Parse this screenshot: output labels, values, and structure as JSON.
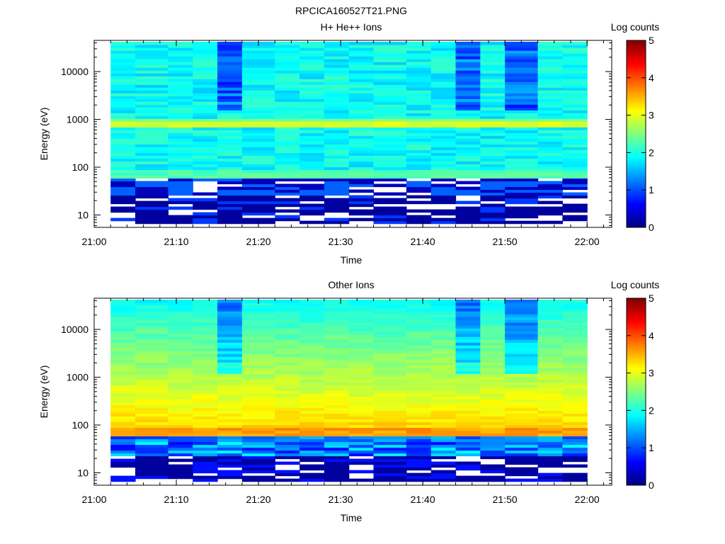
{
  "figure_title": "RPCICA160527T21.PNG",
  "chart_data": [
    {
      "type": "heatmap",
      "title": "H+ He++ Ions",
      "xlabel": "Time",
      "ylabel": "Energy (eV)",
      "y_scale": "log",
      "ylim": [
        5.5,
        45000
      ],
      "xlim": [
        "21:00",
        "22:03"
      ],
      "x_ticks": [
        "21:00",
        "21:10",
        "21:20",
        "21:30",
        "21:40",
        "21:50",
        "22:00"
      ],
      "y_ticks": [
        "10",
        "100",
        "1000",
        "10000"
      ],
      "colorbar": {
        "label": "Log counts",
        "range": [
          0,
          5
        ],
        "ticks": [
          "0",
          "1",
          "2",
          "3",
          "4",
          "5"
        ],
        "colormap": "jet"
      },
      "time_bins_start": [
        "21:02",
        "21:05",
        "21:09",
        "21:12",
        "21:15",
        "21:18",
        "21:22",
        "21:25",
        "21:28",
        "21:31",
        "21:34",
        "21:38",
        "21:41",
        "21:44",
        "21:47",
        "21:50",
        "21:54",
        "21:57"
      ],
      "time_bins_end": "22:00",
      "profile_note_values": {
        "band_energy_eV": 800,
        "band_log_counts": 2.85,
        "background_log_counts": 1.9
      }
    },
    {
      "type": "heatmap",
      "title": "Other Ions",
      "xlabel": "Time",
      "ylabel": "Energy (eV)",
      "y_scale": "log",
      "ylim": [
        5.5,
        45000
      ],
      "xlim": [
        "21:00",
        "22:03"
      ],
      "x_ticks": [
        "21:00",
        "21:10",
        "21:20",
        "21:30",
        "21:40",
        "21:50",
        "22:00"
      ],
      "y_ticks": [
        "10",
        "100",
        "1000",
        "10000"
      ],
      "colorbar": {
        "label": "Log counts",
        "range": [
          0,
          5
        ],
        "ticks": [
          "0",
          "1",
          "2",
          "3",
          "4",
          "5"
        ],
        "colormap": "jet"
      },
      "time_bins_start": [
        "21:02",
        "21:05",
        "21:09",
        "21:12",
        "21:15",
        "21:18",
        "21:22",
        "21:25",
        "21:28",
        "21:31",
        "21:34",
        "21:38",
        "21:41",
        "21:44",
        "21:47",
        "21:50",
        "21:54",
        "21:57"
      ],
      "time_bins_end": "22:00",
      "profile_note_values": {
        "peak_energy_eV": 70,
        "peak_log_counts": 3.6,
        "high_energy_log_counts": 1.9
      }
    }
  ]
}
